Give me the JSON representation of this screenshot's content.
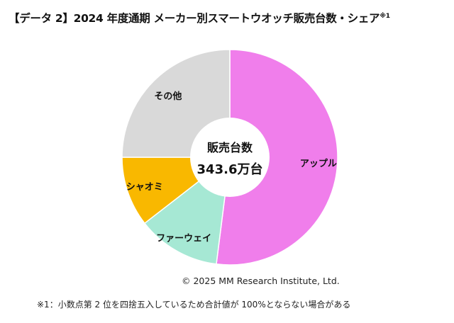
{
  "title": {
    "text": "【データ 2】2024 年度通期 メーカー別スマートウオッチ販売台数・シェア",
    "note_marker": "※1"
  },
  "chart_data": {
    "type": "pie",
    "variant": "donut",
    "center_label": {
      "line1": "販売台数",
      "line2": "343.6万台"
    },
    "categories": [
      "アップル",
      "ファーウェイ",
      "シャオミ",
      "その他"
    ],
    "values": [
      52.0,
      12.5,
      10.5,
      25.0
    ],
    "colors": [
      "#F07EEB",
      "#A6E8D4",
      "#F9B800",
      "#D9D9D9"
    ],
    "start_angle_deg": 0,
    "direction": "clockwise"
  },
  "copyright": "© 2025 MM Research Institute, Ltd.",
  "footnote": "※1：小数点第 2 位を四捨五入しているため合計値が 100%とならない場合がある"
}
